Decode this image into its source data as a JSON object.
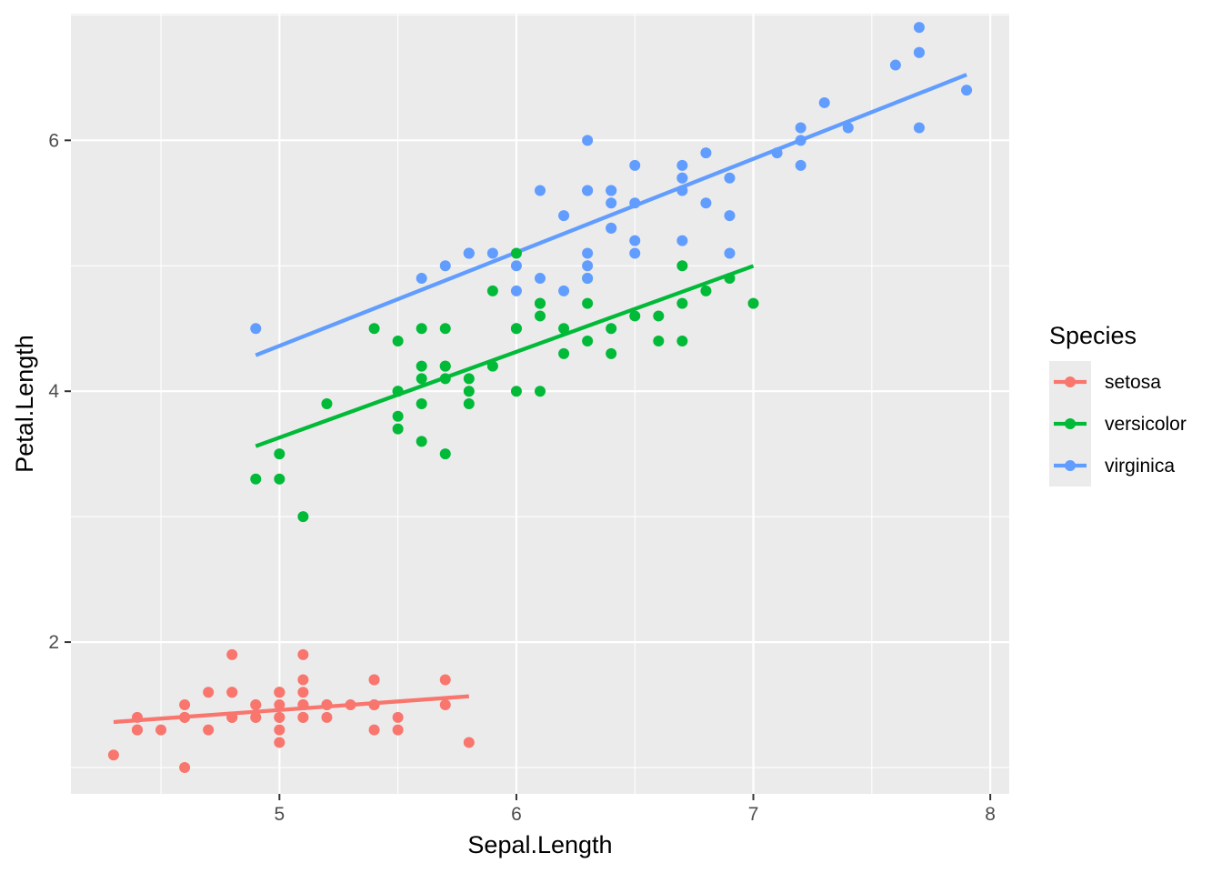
{
  "chart_data": {
    "type": "scatter",
    "xlabel": "Sepal.Length",
    "ylabel": "Petal.Length",
    "xlim": [
      4.12,
      8.08
    ],
    "ylim": [
      0.79,
      7.01
    ],
    "x_ticks": [
      5,
      6,
      7,
      8
    ],
    "y_ticks": [
      2,
      4,
      6
    ],
    "grid": true,
    "legend": {
      "title": "Species",
      "position": "right"
    },
    "series": [
      {
        "name": "setosa",
        "color": "#F8766D",
        "points": [
          [
            5.1,
            1.4
          ],
          [
            4.9,
            1.4
          ],
          [
            4.7,
            1.3
          ],
          [
            4.6,
            1.5
          ],
          [
            5.0,
            1.4
          ],
          [
            5.4,
            1.7
          ],
          [
            4.6,
            1.4
          ],
          [
            5.0,
            1.5
          ],
          [
            4.4,
            1.4
          ],
          [
            4.9,
            1.5
          ],
          [
            5.4,
            1.5
          ],
          [
            4.8,
            1.6
          ],
          [
            4.8,
            1.4
          ],
          [
            4.3,
            1.1
          ],
          [
            5.8,
            1.2
          ],
          [
            5.7,
            1.5
          ],
          [
            5.4,
            1.3
          ],
          [
            5.1,
            1.4
          ],
          [
            5.7,
            1.7
          ],
          [
            5.1,
            1.5
          ],
          [
            5.4,
            1.7
          ],
          [
            5.1,
            1.5
          ],
          [
            4.6,
            1.0
          ],
          [
            5.1,
            1.7
          ],
          [
            4.8,
            1.9
          ],
          [
            5.0,
            1.6
          ],
          [
            5.0,
            1.6
          ],
          [
            5.2,
            1.5
          ],
          [
            5.2,
            1.4
          ],
          [
            4.7,
            1.6
          ],
          [
            4.8,
            1.6
          ],
          [
            5.4,
            1.5
          ],
          [
            5.2,
            1.5
          ],
          [
            5.5,
            1.4
          ],
          [
            4.9,
            1.5
          ],
          [
            5.0,
            1.2
          ],
          [
            5.5,
            1.3
          ],
          [
            4.9,
            1.4
          ],
          [
            4.4,
            1.3
          ],
          [
            5.1,
            1.5
          ],
          [
            5.0,
            1.3
          ],
          [
            4.5,
            1.3
          ],
          [
            4.4,
            1.3
          ],
          [
            5.0,
            1.6
          ],
          [
            5.1,
            1.9
          ],
          [
            4.8,
            1.4
          ],
          [
            5.1,
            1.6
          ],
          [
            4.6,
            1.4
          ],
          [
            5.3,
            1.5
          ],
          [
            5.0,
            1.4
          ]
        ],
        "fit": {
          "x": [
            4.3,
            5.8
          ],
          "y": [
            1.363,
            1.568
          ]
        }
      },
      {
        "name": "versicolor",
        "color": "#00BA38",
        "points": [
          [
            7.0,
            4.7
          ],
          [
            6.4,
            4.5
          ],
          [
            6.9,
            4.9
          ],
          [
            5.5,
            4.0
          ],
          [
            6.5,
            4.6
          ],
          [
            5.7,
            4.5
          ],
          [
            6.3,
            4.7
          ],
          [
            4.9,
            3.3
          ],
          [
            6.6,
            4.6
          ],
          [
            5.2,
            3.9
          ],
          [
            5.0,
            3.5
          ],
          [
            5.9,
            4.2
          ],
          [
            6.0,
            4.0
          ],
          [
            6.1,
            4.7
          ],
          [
            5.6,
            3.6
          ],
          [
            6.7,
            4.4
          ],
          [
            5.6,
            4.5
          ],
          [
            5.8,
            4.1
          ],
          [
            6.2,
            4.5
          ],
          [
            5.6,
            3.9
          ],
          [
            5.9,
            4.8
          ],
          [
            6.1,
            4.0
          ],
          [
            6.3,
            4.9
          ],
          [
            6.1,
            4.7
          ],
          [
            6.4,
            4.3
          ],
          [
            6.6,
            4.4
          ],
          [
            6.8,
            4.8
          ],
          [
            6.7,
            5.0
          ],
          [
            6.0,
            4.5
          ],
          [
            5.7,
            3.5
          ],
          [
            5.5,
            3.8
          ],
          [
            5.5,
            3.7
          ],
          [
            5.8,
            3.9
          ],
          [
            6.0,
            5.1
          ],
          [
            5.4,
            4.5
          ],
          [
            6.0,
            4.5
          ],
          [
            6.7,
            4.7
          ],
          [
            6.3,
            4.4
          ],
          [
            5.6,
            4.1
          ],
          [
            5.5,
            4.0
          ],
          [
            5.5,
            4.4
          ],
          [
            6.1,
            4.6
          ],
          [
            5.8,
            4.0
          ],
          [
            5.0,
            3.3
          ],
          [
            5.6,
            4.2
          ],
          [
            5.7,
            4.2
          ],
          [
            5.7,
            4.2
          ],
          [
            6.2,
            4.3
          ],
          [
            5.1,
            3.0
          ],
          [
            5.7,
            4.1
          ]
        ],
        "fit": {
          "x": [
            4.9,
            7.0
          ],
          "y": [
            3.562,
            4.998
          ]
        }
      },
      {
        "name": "virginica",
        "color": "#619CFF",
        "points": [
          [
            6.3,
            6.0
          ],
          [
            5.8,
            5.1
          ],
          [
            7.1,
            5.9
          ],
          [
            6.3,
            5.6
          ],
          [
            6.5,
            5.8
          ],
          [
            7.6,
            6.6
          ],
          [
            4.9,
            4.5
          ],
          [
            7.3,
            6.3
          ],
          [
            6.7,
            5.8
          ],
          [
            7.2,
            6.1
          ],
          [
            6.5,
            5.1
          ],
          [
            6.4,
            5.3
          ],
          [
            6.8,
            5.5
          ],
          [
            5.7,
            5.0
          ],
          [
            5.8,
            5.1
          ],
          [
            6.4,
            5.3
          ],
          [
            6.5,
            5.5
          ],
          [
            7.7,
            6.7
          ],
          [
            7.7,
            6.9
          ],
          [
            6.0,
            5.0
          ],
          [
            6.9,
            5.7
          ],
          [
            5.6,
            4.9
          ],
          [
            7.7,
            6.7
          ],
          [
            6.3,
            4.9
          ],
          [
            6.7,
            5.7
          ],
          [
            7.2,
            6.0
          ],
          [
            6.2,
            4.8
          ],
          [
            6.1,
            4.9
          ],
          [
            6.4,
            5.6
          ],
          [
            7.2,
            5.8
          ],
          [
            7.4,
            6.1
          ],
          [
            7.9,
            6.4
          ],
          [
            6.4,
            5.6
          ],
          [
            6.3,
            5.1
          ],
          [
            6.1,
            5.6
          ],
          [
            7.7,
            6.1
          ],
          [
            6.3,
            5.6
          ],
          [
            6.4,
            5.5
          ],
          [
            6.0,
            4.8
          ],
          [
            6.9,
            5.4
          ],
          [
            6.7,
            5.6
          ],
          [
            6.9,
            5.1
          ],
          [
            5.8,
            5.1
          ],
          [
            6.8,
            5.9
          ],
          [
            6.7,
            5.7
          ],
          [
            6.7,
            5.2
          ],
          [
            6.3,
            5.0
          ],
          [
            6.5,
            5.2
          ],
          [
            6.2,
            5.4
          ],
          [
            5.9,
            5.1
          ]
        ],
        "fit": {
          "x": [
            4.9,
            7.9
          ],
          "y": [
            4.287,
            6.523
          ]
        }
      }
    ]
  }
}
